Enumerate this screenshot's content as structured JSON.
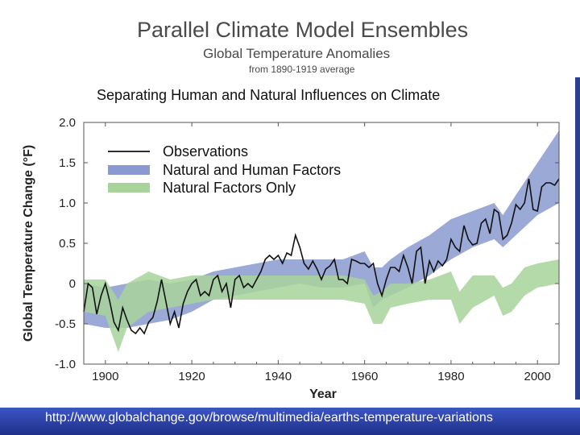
{
  "header": {
    "title": "Parallel Climate Model Ensembles",
    "subtitle": "Global Temperature Anomalies",
    "baseline": "from 1890-1919 average"
  },
  "footer": {
    "url": "http://www.globalchange.gov/browse/multimedia/earths-temperature-variations"
  },
  "chart_data": {
    "type": "line",
    "title": "Separating Human and Natural Influences on Climate",
    "xlabel": "Year",
    "ylabel": "Global Temperature Change (°F)",
    "xlim": [
      1895,
      2005
    ],
    "ylim": [
      -1.0,
      2.0
    ],
    "xticks": [
      1900,
      1920,
      1940,
      1960,
      1980,
      2000
    ],
    "yticks": [
      -1.0,
      -0.5,
      0,
      0.5,
      1.0,
      1.5,
      2.0
    ],
    "ytick_labels": [
      "-1.0",
      "-0.5",
      "0",
      "0.5",
      "1.0",
      "1.5",
      "2.0"
    ],
    "legend_position": "top-left",
    "colors": {
      "observations": "#111111",
      "natural_and_human": "#8a9ad0",
      "natural_only": "#a8d49b"
    },
    "series": [
      {
        "name": "Observations",
        "kind": "line",
        "x": [
          1895,
          1896,
          1897,
          1898,
          1899,
          1900,
          1901,
          1902,
          1903,
          1904,
          1905,
          1906,
          1907,
          1908,
          1909,
          1910,
          1911,
          1912,
          1913,
          1914,
          1915,
          1916,
          1917,
          1918,
          1919,
          1920,
          1921,
          1922,
          1923,
          1924,
          1925,
          1926,
          1927,
          1928,
          1929,
          1930,
          1931,
          1932,
          1933,
          1934,
          1935,
          1936,
          1937,
          1938,
          1939,
          1940,
          1941,
          1942,
          1943,
          1944,
          1945,
          1946,
          1947,
          1948,
          1949,
          1950,
          1951,
          1952,
          1953,
          1954,
          1955,
          1956,
          1957,
          1958,
          1959,
          1960,
          1961,
          1962,
          1963,
          1964,
          1965,
          1966,
          1967,
          1968,
          1969,
          1970,
          1971,
          1972,
          1973,
          1974,
          1975,
          1976,
          1977,
          1978,
          1979,
          1980,
          1981,
          1982,
          1983,
          1984,
          1985,
          1986,
          1987,
          1988,
          1989,
          1990,
          1991,
          1992,
          1993,
          1994,
          1995,
          1996,
          1997,
          1998,
          1999,
          2000,
          2001,
          2002,
          2003,
          2004,
          2005
        ],
        "values": [
          -0.35,
          0.0,
          -0.05,
          -0.38,
          -0.15,
          0.0,
          -0.22,
          -0.48,
          -0.58,
          -0.3,
          -0.45,
          -0.58,
          -0.62,
          -0.55,
          -0.62,
          -0.48,
          -0.42,
          -0.22,
          0.05,
          -0.22,
          -0.5,
          -0.35,
          -0.55,
          -0.25,
          -0.1,
          0.0,
          0.05,
          -0.15,
          -0.1,
          -0.15,
          0.05,
          0.1,
          -0.1,
          0.0,
          -0.3,
          0.05,
          0.1,
          -0.05,
          0.0,
          -0.05,
          0.05,
          0.15,
          0.3,
          0.35,
          0.3,
          0.35,
          0.25,
          0.38,
          0.35,
          0.6,
          0.45,
          0.25,
          0.18,
          0.28,
          0.18,
          0.05,
          0.18,
          0.22,
          0.3,
          0.05,
          0.05,
          0.0,
          0.3,
          0.28,
          0.25,
          0.25,
          0.2,
          0.25,
          0.0,
          -0.15,
          0.05,
          0.2,
          0.2,
          0.15,
          0.35,
          0.2,
          0.0,
          0.4,
          0.45,
          0.0,
          0.28,
          0.15,
          0.28,
          0.22,
          0.3,
          0.55,
          0.45,
          0.4,
          0.72,
          0.55,
          0.48,
          0.5,
          0.75,
          0.8,
          0.62,
          0.92,
          0.88,
          0.55,
          0.6,
          0.75,
          0.98,
          0.92,
          1.0,
          1.3,
          0.92,
          0.9,
          1.2,
          1.25,
          1.25,
          1.22,
          1.3
        ]
      },
      {
        "name": "Natural and Human Factors",
        "kind": "band",
        "x": [
          1895,
          1900,
          1905,
          1910,
          1915,
          1920,
          1925,
          1930,
          1935,
          1940,
          1945,
          1950,
          1955,
          1960,
          1962,
          1964,
          1966,
          1970,
          1975,
          1980,
          1985,
          1990,
          1992,
          1995,
          2000,
          2005
        ],
        "upper": [
          0.0,
          -0.05,
          0.0,
          0.05,
          0.0,
          0.05,
          0.15,
          0.2,
          0.25,
          0.3,
          0.3,
          0.3,
          0.3,
          0.4,
          0.2,
          0.2,
          0.3,
          0.45,
          0.6,
          0.8,
          0.9,
          1.0,
          0.85,
          1.1,
          1.5,
          1.9
        ],
        "lower": [
          -0.5,
          -0.55,
          -0.55,
          -0.5,
          -0.45,
          -0.35,
          -0.2,
          -0.15,
          -0.1,
          -0.05,
          0.0,
          -0.05,
          -0.05,
          0.0,
          -0.3,
          -0.2,
          -0.15,
          -0.05,
          0.1,
          0.3,
          0.45,
          0.55,
          0.45,
          0.6,
          0.85,
          1.0
        ]
      },
      {
        "name": "Natural Factors Only",
        "kind": "band",
        "x": [
          1895,
          1900,
          1903,
          1905,
          1910,
          1915,
          1920,
          1925,
          1930,
          1935,
          1940,
          1945,
          1950,
          1955,
          1960,
          1962,
          1964,
          1966,
          1970,
          1975,
          1980,
          1982,
          1985,
          1990,
          1992,
          1994,
          1997,
          2000,
          2005
        ],
        "upper": [
          0.05,
          0.05,
          -0.2,
          0.0,
          0.15,
          0.05,
          0.1,
          0.1,
          0.1,
          0.1,
          0.1,
          0.1,
          0.1,
          0.1,
          0.05,
          -0.15,
          -0.1,
          0.0,
          0.0,
          0.05,
          0.15,
          -0.1,
          0.1,
          0.1,
          -0.05,
          0.0,
          0.2,
          0.25,
          0.3
        ],
        "lower": [
          -0.35,
          -0.4,
          -0.85,
          -0.55,
          -0.35,
          -0.3,
          -0.25,
          -0.2,
          -0.2,
          -0.2,
          -0.2,
          -0.2,
          -0.2,
          -0.2,
          -0.25,
          -0.5,
          -0.5,
          -0.3,
          -0.25,
          -0.2,
          -0.2,
          -0.5,
          -0.3,
          -0.15,
          -0.4,
          -0.35,
          -0.15,
          -0.05,
          0.0
        ]
      }
    ]
  }
}
